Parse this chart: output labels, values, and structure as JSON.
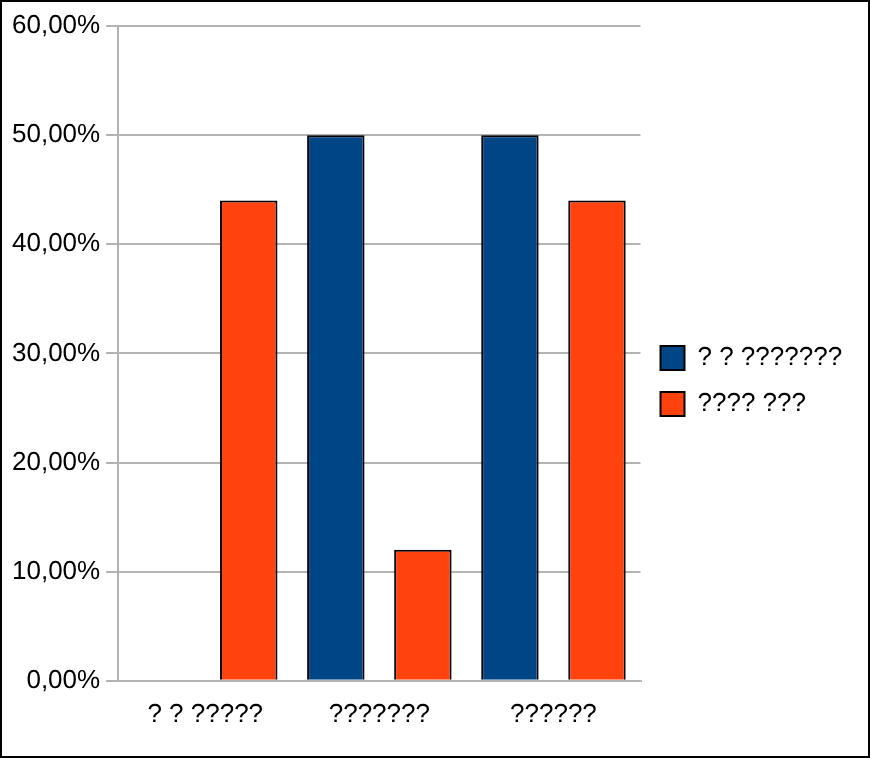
{
  "chart_data": {
    "type": "bar",
    "categories": [
      "? ? ?????",
      "???????",
      "??????"
    ],
    "series": [
      {
        "name": "? ? ???????",
        "color": "#004586",
        "values": [
          0,
          50,
          50
        ]
      },
      {
        "name": "???? ???",
        "color": "#ff420e",
        "values": [
          44,
          12,
          44
        ]
      }
    ],
    "ylim": [
      0,
      60
    ],
    "yticks": [
      {
        "value": 0,
        "label": "0,00%"
      },
      {
        "value": 10,
        "label": "10,00%"
      },
      {
        "value": 20,
        "label": "20,00%"
      },
      {
        "value": 30,
        "label": "30,00%"
      },
      {
        "value": 40,
        "label": "40,00%"
      },
      {
        "value": 50,
        "label": "50,00%"
      },
      {
        "value": 60,
        "label": "60,00%"
      }
    ],
    "grid": "y",
    "legend": "right"
  }
}
